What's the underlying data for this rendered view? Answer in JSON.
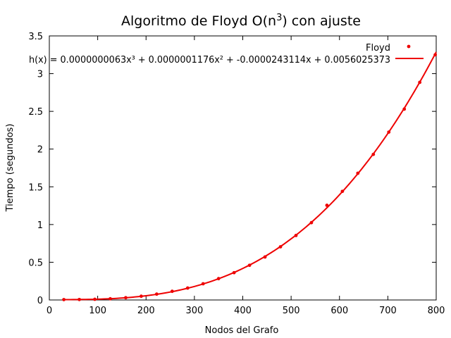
{
  "chart_data": {
    "type": "scatter",
    "title": "Algoritmo de Floyd O(n",
    "title_sup": "3",
    "title_tail": ") con ajuste",
    "xlabel": "Nodos del Grafo",
    "ylabel": "Tiempo (segundos)",
    "xlim": [
      0,
      800
    ],
    "ylim": [
      0,
      3.5
    ],
    "xticks": [
      "0",
      "100",
      "200",
      "300",
      "400",
      "500",
      "600",
      "700",
      "800"
    ],
    "yticks": [
      "0",
      "0.5",
      "1",
      "1.5",
      "2",
      "2.5",
      "3",
      "3.5"
    ],
    "grid": false,
    "legend_position": "top-right",
    "series_color": "#ee0000",
    "series": [
      {
        "name": "Floyd",
        "kind": "points",
        "x": [
          30,
          62,
          94,
          126,
          158,
          190,
          222,
          254,
          286,
          318,
          350,
          382,
          414,
          446,
          478,
          510,
          542,
          574,
          606,
          638,
          670,
          702,
          734,
          766,
          798
        ],
        "y": [
          0.005,
          0.006,
          0.009,
          0.016,
          0.03,
          0.05,
          0.078,
          0.115,
          0.158,
          0.215,
          0.283,
          0.362,
          0.46,
          0.57,
          0.705,
          0.855,
          1.025,
          1.255,
          1.44,
          1.68,
          1.93,
          2.225,
          2.53,
          2.885,
          3.25
        ]
      }
    ],
    "fit": {
      "label": "h(x) = 0.0000000063x³ + 0.0000001176x² + -0.0000243114x + 0.0056025373",
      "coefficients": [
        6.3e-09,
        1.176e-07,
        -2.43114e-05,
        0.0056025373
      ],
      "x_range": [
        30,
        800
      ]
    }
  }
}
